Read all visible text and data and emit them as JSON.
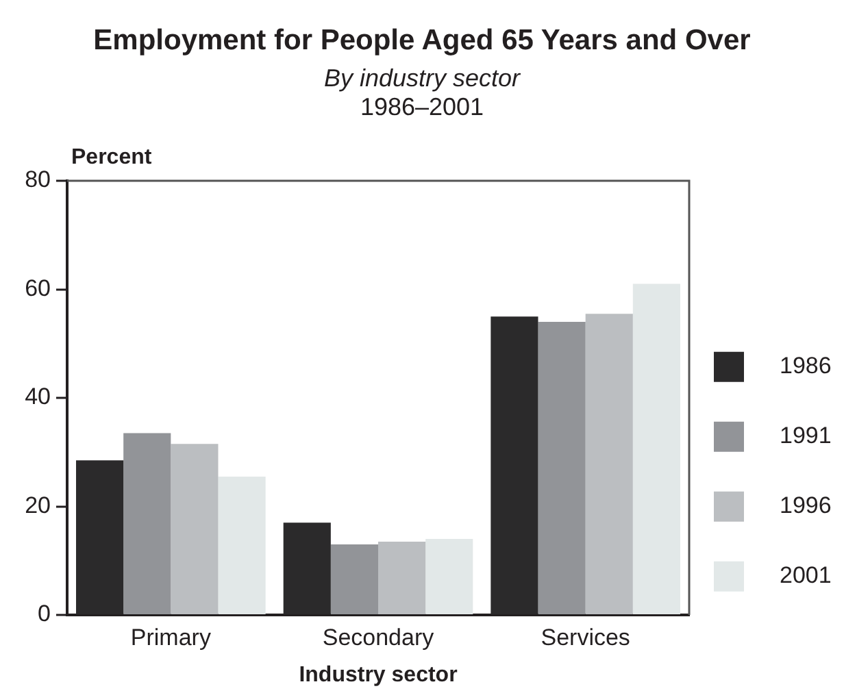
{
  "chart_data": {
    "type": "bar",
    "title": "Employment for People Aged 65 Years and Over",
    "subtitle": "By industry sector",
    "annotations": [
      "1986–2001"
    ],
    "xlabel": "Industry sector",
    "ylabel": "Percent",
    "categories": [
      "Primary",
      "Secondary",
      "Services"
    ],
    "series": [
      {
        "name": "1986",
        "color": "#2b2a2b",
        "values": [
          28.5,
          17,
          55
        ]
      },
      {
        "name": "1991",
        "color": "#929498",
        "values": [
          33.5,
          13,
          54
        ]
      },
      {
        "name": "1996",
        "color": "#bbbec1",
        "values": [
          31.5,
          13.5,
          55.5
        ]
      },
      {
        "name": "2001",
        "color": "#e2e8e8",
        "values": [
          25.5,
          14,
          61
        ]
      }
    ],
    "ylim": [
      0,
      80
    ],
    "yticks": [
      0,
      20,
      40,
      60,
      80
    ],
    "legend": "right"
  }
}
